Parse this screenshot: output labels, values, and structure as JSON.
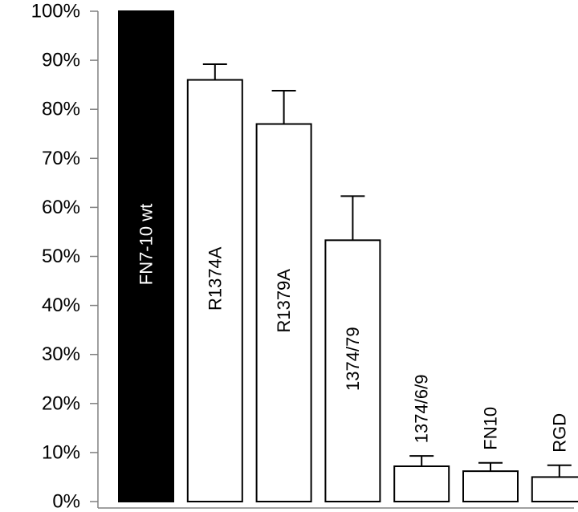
{
  "chart_data": {
    "type": "bar",
    "title": "",
    "xlabel": "",
    "ylabel": "",
    "ylim": [
      0,
      100
    ],
    "y_ticks": [
      "0%",
      "10%",
      "20%",
      "30%",
      "40%",
      "50%",
      "60%",
      "70%",
      "80%",
      "90%",
      "100%"
    ],
    "y_tick_values": [
      0,
      10,
      20,
      30,
      40,
      50,
      60,
      70,
      80,
      90,
      100
    ],
    "grid": false,
    "categories": [
      "FN7-10  wt",
      "R1374A",
      "R1379A",
      "1374/79",
      "1374/6/9",
      "FN10",
      "RGD"
    ],
    "values": [
      100,
      86,
      77,
      53.3,
      7.2,
      6.2,
      5.0
    ],
    "error_upper": [
      0,
      3.2,
      6.8,
      9,
      2.1,
      1.7,
      2.4
    ],
    "bar_fills": [
      "#000000",
      "#ffffff",
      "#ffffff",
      "#ffffff",
      "#ffffff",
      "#ffffff",
      "#ffffff"
    ],
    "label_colors": [
      "#ffffff",
      "#000000",
      "#000000",
      "#000000",
      "#000000",
      "#000000",
      "#000000"
    ]
  }
}
